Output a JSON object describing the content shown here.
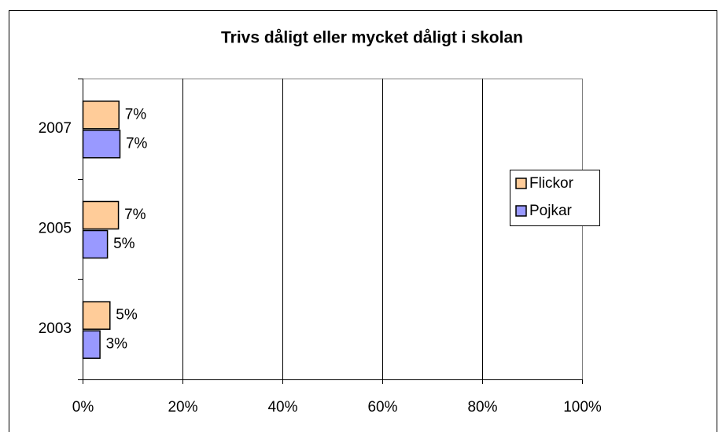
{
  "chart_data": {
    "type": "bar",
    "orientation": "horizontal",
    "title": "Trivs dåligt eller mycket dåligt i skolan",
    "categories": [
      "2003",
      "2005",
      "2007"
    ],
    "series": [
      {
        "name": "Flickor",
        "color": "#FFCC99",
        "values": [
          5.4,
          7.1,
          7.2
        ],
        "value_labels": [
          "5%",
          "7%",
          "7%"
        ]
      },
      {
        "name": "Pojkar",
        "color": "#9999FF",
        "values": [
          3.4,
          4.9,
          7.4
        ],
        "value_labels": [
          "3%",
          "5%",
          "7%"
        ]
      }
    ],
    "xlim": [
      0,
      100
    ],
    "xticks": [
      {
        "value": 0,
        "label": "0%"
      },
      {
        "value": 20,
        "label": "20%"
      },
      {
        "value": 40,
        "label": "40%"
      },
      {
        "value": 60,
        "label": "60%"
      },
      {
        "value": 80,
        "label": "80%"
      },
      {
        "value": 100,
        "label": "100%"
      }
    ],
    "grid": true,
    "legend": "right"
  }
}
